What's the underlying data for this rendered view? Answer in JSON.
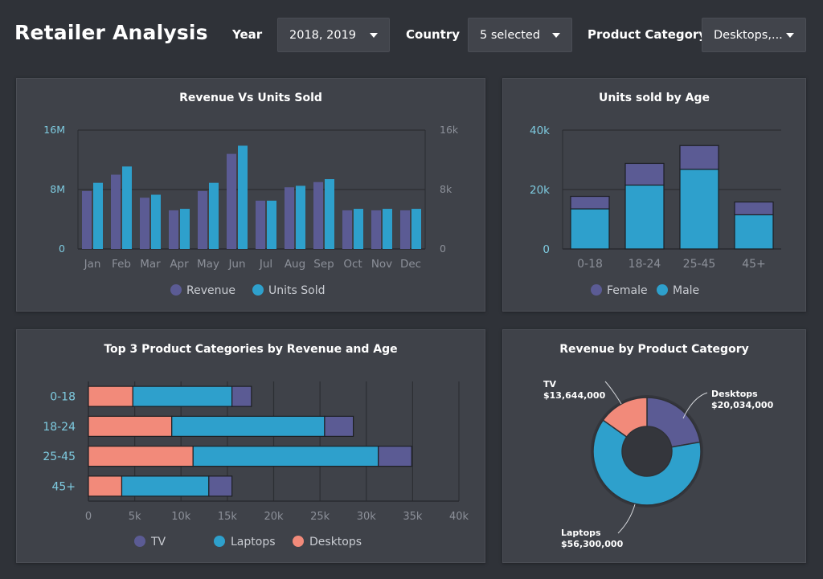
{
  "header": {
    "title": "Retailer Analysis",
    "filters": [
      {
        "label": "Year",
        "value": "2018, 2019"
      },
      {
        "label": "Country",
        "value": "5 selected"
      },
      {
        "label": "Product Category",
        "value": "Desktops,..."
      }
    ]
  },
  "colors": {
    "revenue": "#5b5b94",
    "units": "#2ea0cc",
    "female": "#5b5b94",
    "male": "#2ea0cc",
    "tv": "#5b5b94",
    "laptops": "#2ea0cc",
    "desktops": "#f28a7a",
    "axis_label": "#7ecbe0",
    "tick_label": "#8c9099"
  },
  "chart_data": [
    {
      "type": "bar",
      "title": "Revenue Vs Units Sold",
      "categories": [
        "Jan",
        "Feb",
        "Mar",
        "Apr",
        "May",
        "Jun",
        "Jul",
        "Aug",
        "Sep",
        "Oct",
        "Nov",
        "Dec"
      ],
      "series": [
        {
          "name": "Revenue",
          "axis": "left",
          "values": [
            7.8,
            10.0,
            6.9,
            5.2,
            7.8,
            12.8,
            6.5,
            8.3,
            9.0,
            5.2,
            5.2,
            5.2
          ]
        },
        {
          "name": "Units Sold",
          "axis": "right",
          "values": [
            8.9,
            11.1,
            7.3,
            5.4,
            8.9,
            13.9,
            6.5,
            8.5,
            9.4,
            5.4,
            5.4,
            5.4
          ]
        }
      ],
      "left_axis": {
        "ylim": [
          0,
          16
        ],
        "ticks": [
          "0",
          "8M",
          "16M"
        ],
        "unit": "M"
      },
      "right_axis": {
        "ylim": [
          0,
          16
        ],
        "ticks": [
          "0",
          "8k",
          "16k"
        ],
        "unit": "k"
      },
      "legend": [
        "Revenue",
        "Units Sold"
      ]
    },
    {
      "type": "bar",
      "stacked": true,
      "title": "Units sold by Age",
      "categories": [
        "0-18",
        "18-24",
        "25-45",
        "45+"
      ],
      "series": [
        {
          "name": "Male",
          "values": [
            13.5,
            21.5,
            26.8,
            11.5
          ]
        },
        {
          "name": "Female",
          "values": [
            4.2,
            7.3,
            8.0,
            4.3
          ]
        }
      ],
      "ylim": [
        0,
        40
      ],
      "ticks": [
        "0",
        "20k",
        "40k"
      ],
      "legend": [
        "Female",
        "Male"
      ]
    },
    {
      "type": "bar",
      "orientation": "horizontal",
      "stacked": true,
      "title": "Top 3 Product Categories by Revenue and Age",
      "categories": [
        "0-18",
        "18-24",
        "25-45",
        "45+"
      ],
      "series": [
        {
          "name": "Desktops",
          "values": [
            4.8,
            9.0,
            11.3,
            3.6
          ]
        },
        {
          "name": "Laptops",
          "values": [
            10.7,
            16.5,
            20.0,
            9.4
          ]
        },
        {
          "name": "TV",
          "values": [
            2.1,
            3.1,
            3.6,
            2.5
          ]
        }
      ],
      "xlim": [
        0,
        40
      ],
      "ticks": [
        "0",
        "5k",
        "10k",
        "15k",
        "20k",
        "25k",
        "30k",
        "35k",
        "40k"
      ],
      "legend": [
        "TV",
        "Laptops",
        "Desktops"
      ]
    },
    {
      "type": "pie",
      "donut": true,
      "title": "Revenue by Product Category",
      "slices": [
        {
          "name": "Desktops",
          "value": 20034000,
          "label": "$20,034,000"
        },
        {
          "name": "Laptops",
          "value": 56300000,
          "label": "$56,300,000"
        },
        {
          "name": "TV",
          "value": 13644000,
          "label": "$13,644,000"
        }
      ]
    }
  ]
}
